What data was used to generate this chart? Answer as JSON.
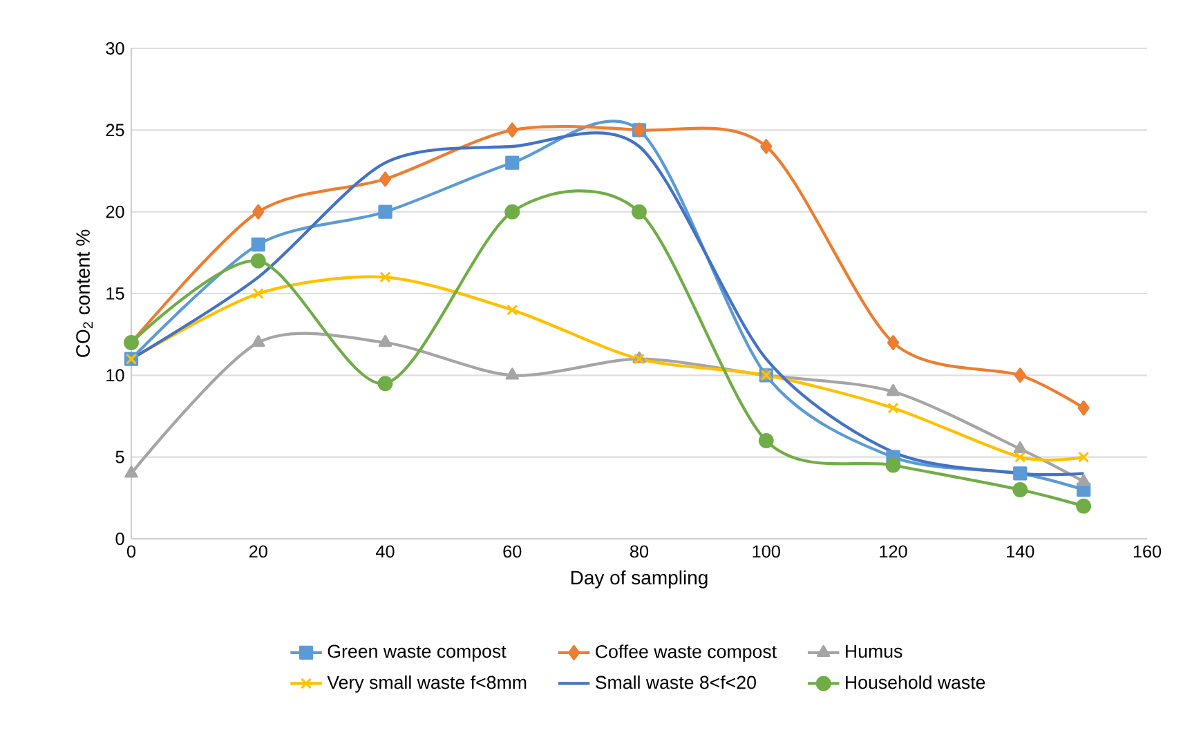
{
  "chart_data": {
    "type": "line",
    "xlabel": "Day of sampling",
    "ylabel": "CO$_{2}$ content %",
    "x": [
      0,
      20,
      40,
      60,
      80,
      100,
      120,
      140,
      150
    ],
    "xlim": [
      0,
      160
    ],
    "xticks": [
      0,
      20,
      40,
      60,
      80,
      100,
      120,
      140,
      160
    ],
    "ylim": [
      0,
      30
    ],
    "yticks": [
      0,
      5,
      10,
      15,
      20,
      25,
      30
    ],
    "grid": "y",
    "legend": "bottom",
    "series": [
      {
        "name": "Green waste compost",
        "color": "#5b9bd5",
        "marker": "square",
        "values": [
          11,
          18,
          20,
          23,
          25,
          10,
          5,
          4,
          3
        ]
      },
      {
        "name": "Coffee waste compost",
        "color": "#ed7d31",
        "marker": "diamond",
        "values": [
          12,
          20,
          22,
          25,
          25,
          24,
          12,
          10,
          8
        ]
      },
      {
        "name": "Humus",
        "color": "#a5a5a5",
        "marker": "triangle",
        "values": [
          4,
          12,
          12,
          10,
          11,
          10,
          9,
          5.5,
          3.5
        ]
      },
      {
        "name": "Very small waste f<8mm",
        "color": "#ffc000",
        "marker": "cross",
        "values": [
          11,
          15,
          16,
          14,
          11,
          10,
          8,
          5,
          5
        ]
      },
      {
        "name": "Small waste 8<f<20",
        "color": "#4472c4",
        "marker": "none",
        "values": [
          11,
          16,
          23,
          24,
          24,
          11,
          5.3,
          4,
          4
        ]
      },
      {
        "name": "Household waste",
        "color": "#70ad47",
        "marker": "circle",
        "values": [
          12,
          17,
          9.5,
          20,
          20,
          6,
          4.5,
          3,
          2
        ]
      }
    ]
  }
}
